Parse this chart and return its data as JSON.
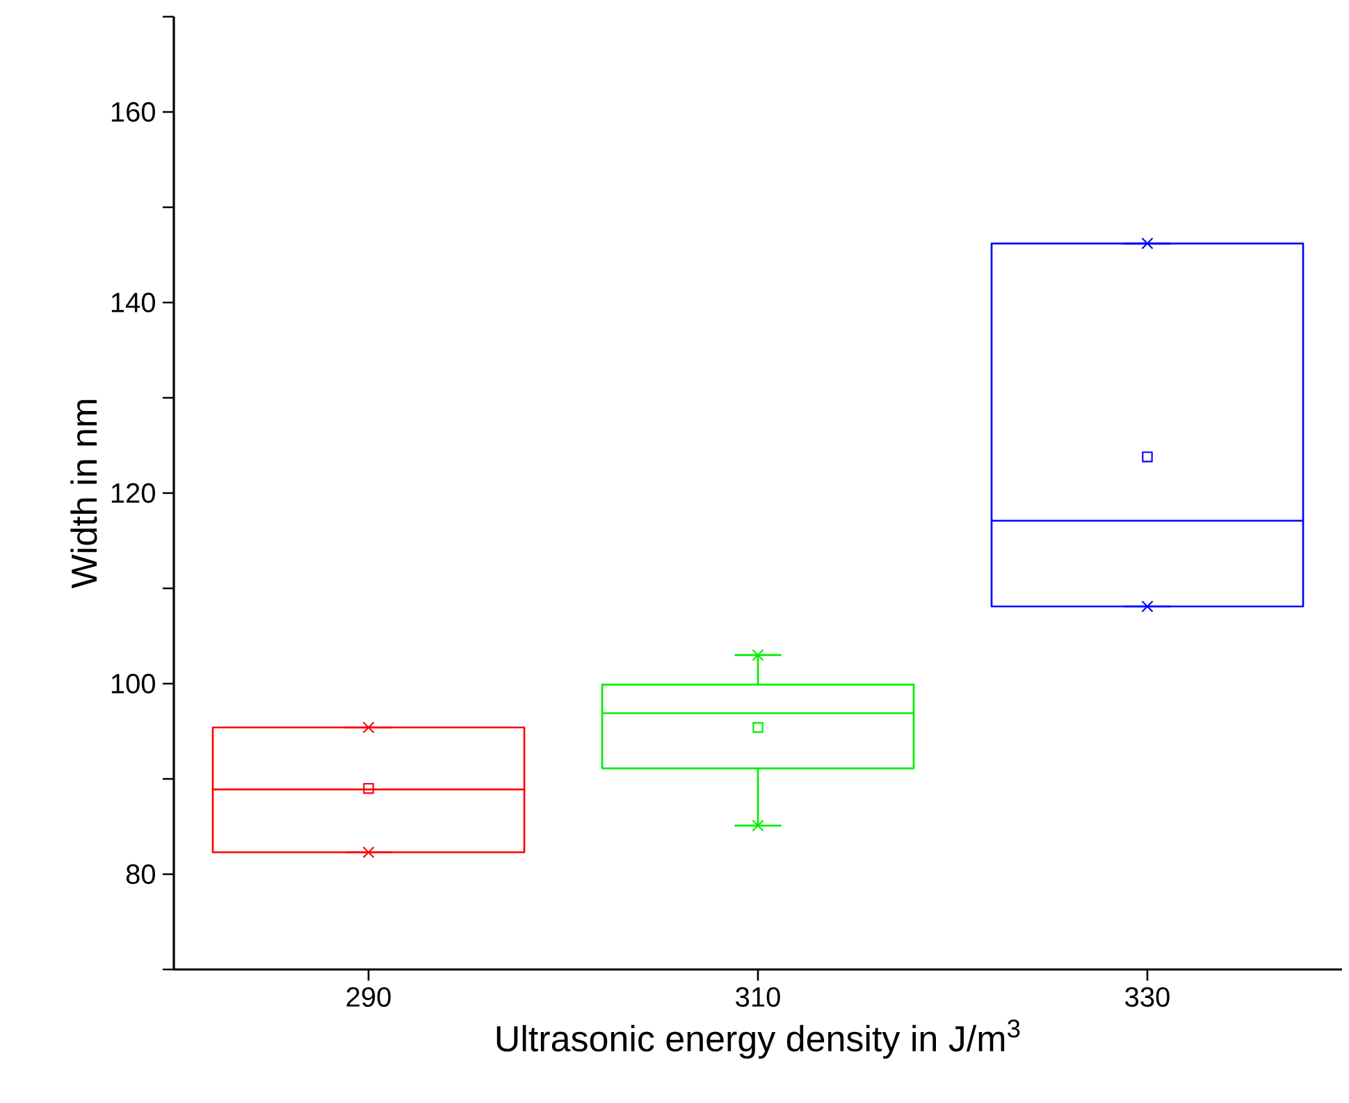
{
  "chart_data": {
    "type": "box",
    "xlabel": "Ultrasonic energy density in J/m$^{3}$",
    "ylabel": "Width in nm",
    "categories": [
      "290",
      "310",
      "330"
    ],
    "boxes": [
      {
        "low": 82.3,
        "q1": 82.3,
        "median": 88.9,
        "q3": 95.4,
        "high": 95.4,
        "mean": 89.0
      },
      {
        "low": 85.1,
        "q1": 91.1,
        "median": 96.9,
        "q3": 99.9,
        "high": 103.0,
        "mean": 95.4
      },
      {
        "low": 108.1,
        "q1": 108.1,
        "median": 117.1,
        "q3": 146.2,
        "high": 146.2,
        "mean": 123.8
      }
    ],
    "colors": [
      "#ff0000",
      "#00ee00",
      "#0000ff"
    ],
    "series": [
      {
        "type": "scatter",
        "marker": "cross",
        "color": "#ff0000",
        "x": [
          "290",
          "290"
        ],
        "values": [
          82.3,
          95.4
        ]
      },
      {
        "type": "scatter",
        "marker": "cross",
        "color": "#00ee00",
        "x": [
          "310",
          "310"
        ],
        "values": [
          85.1,
          103.0
        ]
      },
      {
        "type": "scatter",
        "marker": "cross",
        "color": "#0000ff",
        "x": [
          "330",
          "330"
        ],
        "values": [
          108.1,
          146.2
        ]
      }
    ],
    "ylim": [
      70,
      170
    ],
    "yticks": [
      {
        "value": 70,
        "label": null
      },
      80,
      {
        "value": 90,
        "label": null
      },
      100,
      {
        "value": 110,
        "label": null
      },
      120,
      {
        "value": 130,
        "label": null
      },
      140,
      {
        "value": 150,
        "label": null
      },
      160,
      {
        "value": 170,
        "label": null
      }
    ],
    "grid": false
  }
}
